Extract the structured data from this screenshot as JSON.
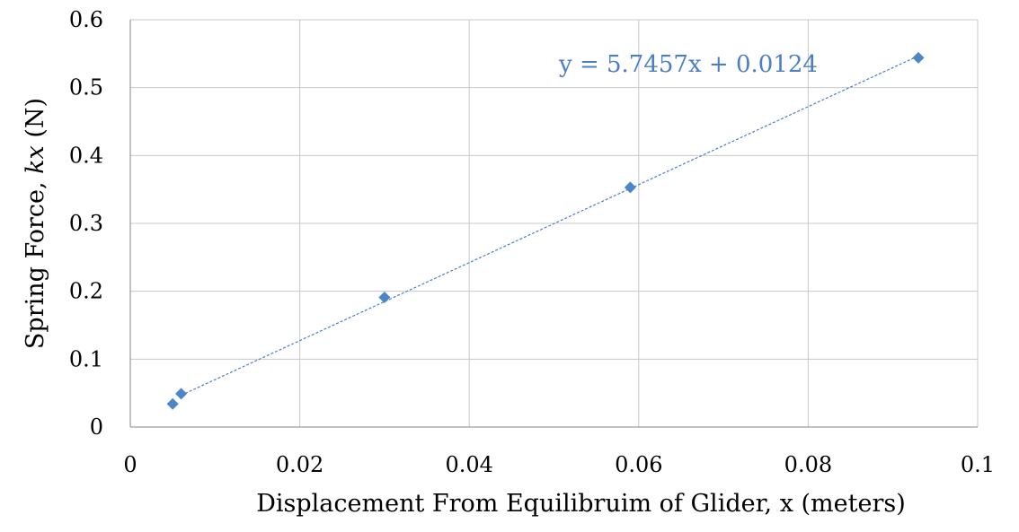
{
  "chart_data": {
    "type": "scatter",
    "title": "",
    "xlabel": "Displacement From Equilibruim of Glider, x (meters)",
    "ylabel_prefix": "Spring Force, ",
    "ylabel_italic": "kx",
    "ylabel_suffix": " (N)",
    "xlim": [
      0,
      0.1
    ],
    "ylim": [
      0,
      0.6
    ],
    "x_ticks": [
      "0",
      "0.02",
      "0.04",
      "0.06",
      "0.08",
      "0.1"
    ],
    "y_ticks": [
      "0",
      "0.1",
      "0.2",
      "0.3",
      "0.4",
      "0.5",
      "0.6"
    ],
    "grid": true,
    "legend": "none",
    "series": [
      {
        "x": [
          0.005,
          0.006,
          0.03,
          0.059,
          0.093
        ],
        "y": [
          0.034,
          0.049,
          0.191,
          0.353,
          0.544
        ],
        "color": "#4a86c8",
        "marker": "diamond"
      }
    ],
    "trendline": {
      "type": "linear",
      "slope": 5.7457,
      "intercept": 0.0124,
      "x_range": [
        0.006,
        0.093
      ],
      "color": "#4a7ec8",
      "style": "dashed",
      "equation": "y = 5.7457x + 0.0124"
    }
  }
}
